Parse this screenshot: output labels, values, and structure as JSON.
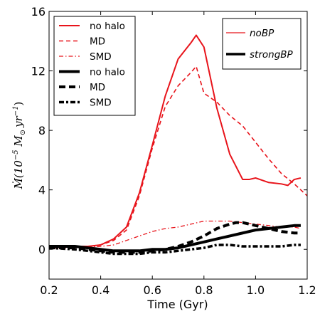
{
  "chart_data": {
    "type": "line",
    "xlabel": "Time (Gyr)",
    "ylabel_parts": {
      "main": "Ṁ(10",
      "exp1": "−5",
      "mid": " M",
      "sun": "⊙",
      "yr": "yr",
      "exp2": "−1",
      "close": ")"
    },
    "xlim": [
      0.2,
      1.2
    ],
    "ylim": [
      -2,
      16
    ],
    "xticks": [
      0.2,
      0.4,
      0.6,
      0.8,
      1.0,
      1.2
    ],
    "yticks": [
      0,
      4,
      8,
      12,
      16
    ],
    "xtick_labels": [
      "0.2",
      "0.4",
      "0.6",
      "0.8",
      "1.0",
      "1.2"
    ],
    "ytick_labels": [
      "0",
      "4",
      "8",
      "12",
      "16"
    ],
    "colors": {
      "noBP": "#e8141b",
      "strongBP": "#000000"
    },
    "series": [
      {
        "group": "noBP",
        "name": "no halo",
        "style": "solid",
        "x": [
          0.2,
          0.3,
          0.35,
          0.4,
          0.45,
          0.5,
          0.55,
          0.6,
          0.65,
          0.7,
          0.75,
          0.77,
          0.8,
          0.85,
          0.9,
          0.95,
          0.975,
          1.0,
          1.05,
          1.1,
          1.125,
          1.15,
          1.175
        ],
        "y": [
          0.2,
          0.2,
          0.2,
          0.3,
          0.7,
          1.5,
          3.8,
          7.0,
          10.3,
          12.8,
          13.9,
          14.4,
          13.6,
          9.5,
          6.4,
          4.7,
          4.7,
          4.8,
          4.5,
          4.4,
          4.3,
          4.7,
          4.8
        ]
      },
      {
        "group": "noBP",
        "name": "MD",
        "style": "dashed",
        "x": [
          0.2,
          0.3,
          0.35,
          0.4,
          0.45,
          0.5,
          0.55,
          0.6,
          0.65,
          0.7,
          0.75,
          0.77,
          0.8,
          0.85,
          0.9,
          0.95,
          1.0,
          1.05,
          1.1,
          1.15,
          1.2
        ],
        "y": [
          0.2,
          0.2,
          0.2,
          0.3,
          0.6,
          1.3,
          3.6,
          6.8,
          9.6,
          11.0,
          11.9,
          12.3,
          10.5,
          9.9,
          9.0,
          8.3,
          7.2,
          6.1,
          5.1,
          4.4,
          3.6
        ]
      },
      {
        "group": "noBP",
        "name": "SMD",
        "style": "dashdot",
        "x": [
          0.2,
          0.3,
          0.4,
          0.45,
          0.5,
          0.55,
          0.6,
          0.65,
          0.7,
          0.75,
          0.8,
          0.85,
          0.9,
          0.95,
          1.0,
          1.05,
          1.1,
          1.15,
          1.175
        ],
        "y": [
          0.1,
          0.1,
          0.2,
          0.3,
          0.6,
          0.9,
          1.2,
          1.4,
          1.5,
          1.7,
          1.9,
          1.9,
          1.9,
          1.8,
          1.7,
          1.6,
          1.5,
          1.5,
          1.4
        ]
      },
      {
        "group": "strongBP",
        "name": "no halo",
        "style": "solid",
        "x": [
          0.2,
          0.3,
          0.35,
          0.4,
          0.45,
          0.5,
          0.55,
          0.6,
          0.65,
          0.7,
          0.75,
          0.8,
          0.85,
          0.9,
          0.95,
          1.0,
          1.05,
          1.1,
          1.15,
          1.175
        ],
        "y": [
          0.2,
          0.2,
          0.1,
          0.0,
          -0.1,
          -0.1,
          -0.1,
          0.0,
          0.0,
          0.1,
          0.3,
          0.5,
          0.7,
          0.9,
          1.1,
          1.3,
          1.4,
          1.5,
          1.6,
          1.6
        ]
      },
      {
        "group": "strongBP",
        "name": "MD",
        "style": "dashed",
        "x": [
          0.2,
          0.3,
          0.35,
          0.4,
          0.45,
          0.5,
          0.55,
          0.6,
          0.65,
          0.7,
          0.75,
          0.8,
          0.85,
          0.9,
          0.925,
          0.95,
          1.0,
          1.05,
          1.1,
          1.15,
          1.175
        ],
        "y": [
          0.1,
          0.1,
          0.0,
          -0.1,
          -0.2,
          -0.2,
          -0.2,
          -0.1,
          0.0,
          0.2,
          0.5,
          0.9,
          1.4,
          1.7,
          1.8,
          1.8,
          1.6,
          1.4,
          1.2,
          1.1,
          1.1
        ]
      },
      {
        "group": "strongBP",
        "name": "SMD",
        "style": "dotted",
        "x": [
          0.2,
          0.3,
          0.35,
          0.4,
          0.45,
          0.5,
          0.55,
          0.6,
          0.65,
          0.7,
          0.75,
          0.8,
          0.85,
          0.9,
          0.95,
          1.0,
          1.05,
          1.1,
          1.15,
          1.175
        ],
        "y": [
          0.1,
          0.0,
          -0.1,
          -0.2,
          -0.3,
          -0.3,
          -0.3,
          -0.2,
          -0.2,
          -0.1,
          0.0,
          0.1,
          0.3,
          0.3,
          0.2,
          0.2,
          0.2,
          0.2,
          0.3,
          0.3
        ]
      }
    ],
    "legend_lines": {
      "placement": "top-left",
      "entries": [
        {
          "label": "no halo",
          "group": "noBP",
          "style": "solid"
        },
        {
          "label": "MD",
          "group": "noBP",
          "style": "dashed"
        },
        {
          "label": "SMD",
          "group": "noBP",
          "style": "dashdot"
        },
        {
          "label": "no halo",
          "group": "strongBP",
          "style": "solid"
        },
        {
          "label": "MD",
          "group": "strongBP",
          "style": "dashed"
        },
        {
          "label": "SMD",
          "group": "strongBP",
          "style": "dotted"
        }
      ]
    },
    "legend_groups": {
      "placement": "top-right",
      "entries": [
        {
          "label": "noBP",
          "group": "noBP"
        },
        {
          "label": "strongBP",
          "group": "strongBP"
        }
      ]
    }
  }
}
